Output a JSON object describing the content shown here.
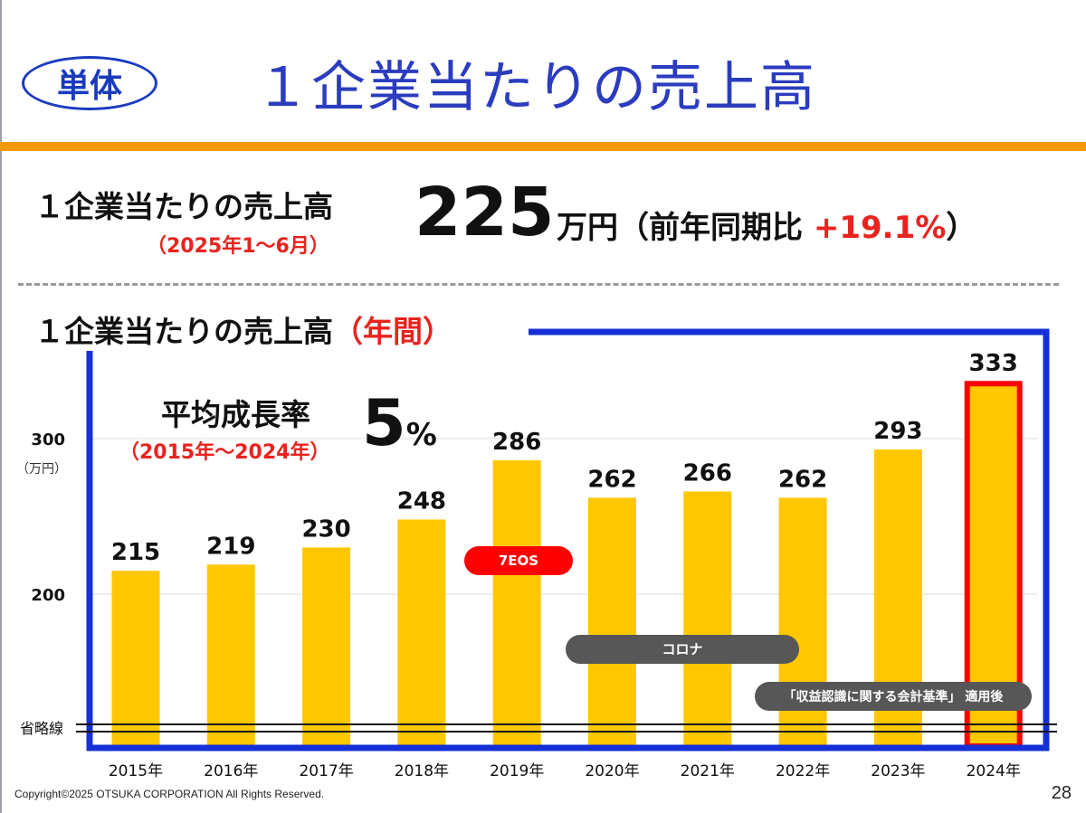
{
  "header": {
    "badge": "単体",
    "title": "１企業当たりの売上高"
  },
  "kpi": {
    "label": "１企業当たりの売上高",
    "period": "（2025年1～6月）",
    "value": "225",
    "unit": "万円（前年同期比",
    "growth": "+19.1%",
    "close": "）"
  },
  "section": {
    "label": "１企業当たりの売上高",
    "label_suffix": "（年間）"
  },
  "average": {
    "label": "平均成長率",
    "period": "（2015年～2024年）",
    "value": "5",
    "unit": "%"
  },
  "chart_data": {
    "type": "bar",
    "categories": [
      "2015年",
      "2016年",
      "2017年",
      "2018年",
      "2019年",
      "2020年",
      "2021年",
      "2022年",
      "2023年",
      "2024年"
    ],
    "values": [
      215,
      219,
      230,
      248,
      286,
      262,
      266,
      262,
      293,
      333
    ],
    "data_labels": [
      "215",
      "219",
      "230",
      "248",
      "286",
      "262",
      "266",
      "262",
      "293",
      "333"
    ],
    "ylim": [
      200,
      350
    ],
    "yticks": [
      200,
      300
    ],
    "ytick_labels": [
      "200",
      "300"
    ],
    "yunit": "（万円）",
    "axis_break_label": "省略線",
    "grid": true,
    "highlight_index": 9,
    "annotations": [
      {
        "text": "7EOS",
        "from": "2019年",
        "to": "2019年",
        "style": "red"
      },
      {
        "text": "コロナ",
        "from": "2020年",
        "to": "2022年",
        "style": "gray"
      },
      {
        "text": "「収益認識に関する会計基準」 適用後",
        "from": "2022年",
        "to": "2024年",
        "style": "gray"
      }
    ],
    "colors": {
      "bar": "#ffc700",
      "highlight_border": "#ff0000",
      "frame": "#1530d6",
      "grid": "#dddddd"
    }
  },
  "footer": {
    "copyright": "Copyright©2025 OTSUKA CORPORATION All Rights Reserved.",
    "page": "28"
  }
}
